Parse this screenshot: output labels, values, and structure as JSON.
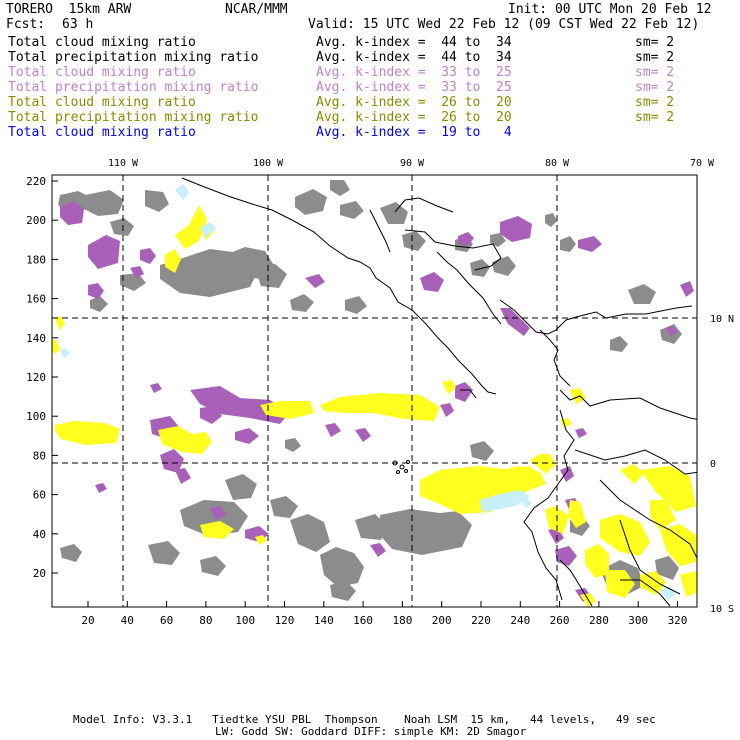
{
  "header": {
    "model": "TORERO  15km ARW",
    "org": "NCAR/MMM",
    "init": "Init: 00 UTC Mon 20 Feb 12",
    "fcst_label": "Fcst:",
    "fcst_value": "63 h",
    "valid": "Valid: 15 UTC Wed 22 Feb 12 (09 CST Wed 22 Feb 12)"
  },
  "fields": [
    {
      "name": "Total cloud mixing ratio",
      "avg": "Avg. k-index =  44 to  34",
      "sm": "sm= 2",
      "color": "#000000"
    },
    {
      "name": "Total precipitation mixing ratio",
      "avg": "Avg. k-index =  44 to  34",
      "sm": "sm= 2",
      "color": "#000000"
    },
    {
      "name": "Total cloud mixing ratio",
      "avg": "Avg. k-index =  33 to  25",
      "sm": "sm= 2",
      "color": "#c080d0"
    },
    {
      "name": "Total precipitation mixing ratio",
      "avg": "Avg. k-index =  33 to  25",
      "sm": "sm= 2",
      "color": "#c080d0"
    },
    {
      "name": "Total cloud mixing ratio",
      "avg": "Avg. k-index =  26 to  20",
      "sm": "sm= 2",
      "color": "#8a8a00"
    },
    {
      "name": "Total precipitation mixing ratio",
      "avg": "Avg. k-index =  26 to  20",
      "sm": "sm= 2",
      "color": "#8a8a00"
    },
    {
      "name": "Total cloud mixing ratio",
      "avg": "Avg. k-index =  19 to   4",
      "sm": "",
      "color": "#0000ee"
    }
  ],
  "map": {
    "top_lon_labels": [
      "110 W",
      "100 W",
      "90 W",
      "80 W",
      "70 W"
    ],
    "right_lat_labels": [
      "10 N",
      "0",
      "10 S"
    ],
    "y_ticks": [
      "220",
      "200",
      "180",
      "160",
      "140",
      "120",
      "100",
      "80",
      "60",
      "40",
      "20"
    ],
    "x_ticks": [
      "20",
      "40",
      "60",
      "80",
      "100",
      "120",
      "140",
      "160",
      "180",
      "200",
      "220",
      "240",
      "260",
      "280",
      "300",
      "320"
    ],
    "colors": {
      "gray": "#8c8c8c",
      "purple": "#a860b8",
      "yellow": "#ffff20",
      "cyan": "#c8f0f8"
    }
  },
  "footer": {
    "line1": "Model Info: V3.3.1   Tiedtke YSU PBL  Thompson    Noah LSM  15 km,   44 levels,   49 sec",
    "line2": "LW: Godd SW: Goddard DIFF: simple KM: 2D Smagor"
  }
}
